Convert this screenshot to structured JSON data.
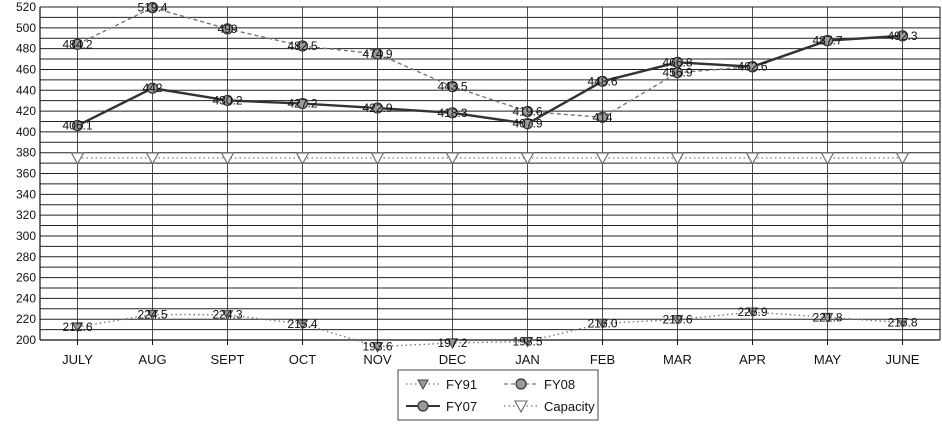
{
  "chart_data": {
    "type": "line",
    "categories": [
      "JULY",
      "AUG",
      "SEPT",
      "OCT",
      "NOV",
      "DEC",
      "JAN",
      "FEB",
      "MAR",
      "APR",
      "MAY",
      "JUNE"
    ],
    "ylim": [
      200,
      520
    ],
    "ytick_step": 10,
    "grid": true,
    "legend_position": "bottom-center",
    "series": [
      {
        "name": "FY91",
        "values": [
          212.6,
          224.5,
          224.3,
          215.4,
          193.6,
          197.2,
          198.5,
          216.0,
          219.6,
          226.9,
          221.8,
          216.8
        ],
        "labels": [
          "212.6",
          "224.5",
          "224.3",
          "215.4",
          "193.6",
          "197.2",
          "198.5",
          "216.0",
          "219.6",
          "226.9",
          "221.8",
          "216.8"
        ],
        "marker": "triangle-down-filled",
        "line": "dotted",
        "color": "#777777"
      },
      {
        "name": "FY08",
        "values": [
          484.2,
          519.4,
          499,
          482.5,
          474.9,
          443.5,
          419.6,
          414,
          456.9,
          462.6,
          487.7,
          492.3
        ],
        "labels": [
          "484.2",
          "519.4",
          "499",
          "482.5",
          "474.9",
          "443.5",
          "419.6",
          "414",
          "456.9",
          "462.6",
          "487.7",
          "492.3"
        ],
        "marker": "circle",
        "line": "dashed",
        "color": "#777777"
      },
      {
        "name": "FY07",
        "values": [
          406.1,
          442,
          430.2,
          427.2,
          422.9,
          418.3,
          407.9,
          448.6,
          466.8,
          462.6,
          487.7,
          492.3
        ],
        "labels": [
          "406.1",
          "442",
          "430.2",
          "427.2",
          "422.9",
          "418.3",
          "407.9",
          "448.6",
          "466.8",
          "",
          "",
          ""
        ],
        "marker": "circle",
        "line": "solid",
        "color": "#333333"
      },
      {
        "name": "Capacity",
        "values": [
          375,
          375,
          375,
          375,
          375,
          375,
          375,
          375,
          375,
          375,
          375,
          375
        ],
        "labels": [],
        "marker": "triangle-down-open",
        "line": "dotted",
        "color": "#888888"
      }
    ],
    "legend": [
      {
        "name": "FY91",
        "marker": "triangle-down-filled",
        "line": "dotted"
      },
      {
        "name": "FY08",
        "marker": "circle",
        "line": "dashed"
      },
      {
        "name": "FY07",
        "marker": "circle",
        "line": "solid"
      },
      {
        "name": "Capacity",
        "marker": "triangle-down-open",
        "line": "dotted"
      }
    ]
  }
}
